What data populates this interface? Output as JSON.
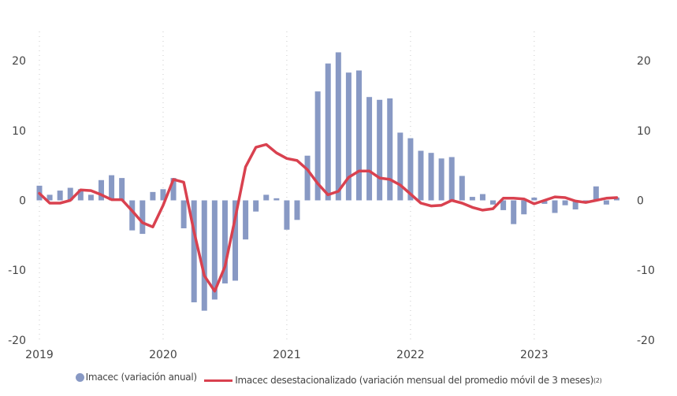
{
  "chart_data": {
    "type": "bar+line",
    "title": "",
    "xlabel": "",
    "ylabel": "",
    "ylim": [
      -20,
      25
    ],
    "yticks": [
      20,
      10,
      0,
      -10,
      -20
    ],
    "y2ticks": [
      20,
      10,
      0,
      -10,
      -20
    ],
    "xticks": [
      "2019",
      "2020",
      "2021",
      "2022",
      "2023"
    ],
    "grid": "vertical dotted at year starts",
    "legend_position": "bottom",
    "x": [
      "2019-01",
      "2019-02",
      "2019-03",
      "2019-04",
      "2019-05",
      "2019-06",
      "2019-07",
      "2019-08",
      "2019-09",
      "2019-10",
      "2019-11",
      "2019-12",
      "2020-01",
      "2020-02",
      "2020-03",
      "2020-04",
      "2020-05",
      "2020-06",
      "2020-07",
      "2020-08",
      "2020-09",
      "2020-10",
      "2020-11",
      "2020-12",
      "2021-01",
      "2021-02",
      "2021-03",
      "2021-04",
      "2021-05",
      "2021-06",
      "2021-07",
      "2021-08",
      "2021-09",
      "2021-10",
      "2021-11",
      "2021-12",
      "2022-01",
      "2022-02",
      "2022-03",
      "2022-04",
      "2022-05",
      "2022-06",
      "2022-07",
      "2022-08",
      "2022-09",
      "2022-10",
      "2022-11",
      "2022-12",
      "2023-01",
      "2023-02",
      "2023-03",
      "2023-04",
      "2023-05",
      "2023-06",
      "2023-07",
      "2023-08",
      "2023-09"
    ],
    "series": [
      {
        "name": "Imacec (variación anual)",
        "type": "bar",
        "color": "#8899c4",
        "values": [
          2.1,
          0.8,
          1.4,
          1.8,
          1.6,
          0.8,
          2.9,
          3.6,
          3.2,
          -4.3,
          -4.8,
          1.2,
          1.6,
          3.2,
          -4.0,
          -14.6,
          -15.8,
          -14.2,
          -11.9,
          -11.5,
          -5.6,
          -1.6,
          0.8,
          0.3,
          -4.2,
          -2.8,
          6.4,
          15.6,
          19.6,
          21.2,
          18.3,
          18.6,
          14.8,
          14.4,
          14.6,
          9.7,
          8.9,
          7.1,
          6.8,
          6.0,
          6.2,
          3.5,
          0.5,
          0.9,
          -0.6,
          -1.4,
          -3.4,
          -2.0,
          0.4,
          -0.5,
          -1.8,
          -0.7,
          -1.3,
          -0.4,
          2.0,
          -0.6,
          0.4
        ]
      },
      {
        "name": "Imacec desestacionalizado (variación mensual del promedio móvil de 3 meses)",
        "footnote": "(2)",
        "type": "line",
        "color": "#d9414f",
        "values": [
          1.0,
          -0.4,
          -0.4,
          0.0,
          1.5,
          1.4,
          0.8,
          0.1,
          0.1,
          -1.5,
          -3.2,
          -3.8,
          -0.7,
          3.0,
          2.6,
          -4.5,
          -10.8,
          -13.0,
          -9.5,
          -2.5,
          4.8,
          7.6,
          8.0,
          6.8,
          6.0,
          5.7,
          4.4,
          2.4,
          0.8,
          1.3,
          3.3,
          4.2,
          4.2,
          3.2,
          3.0,
          2.2,
          0.9,
          -0.4,
          -0.8,
          -0.7,
          0.0,
          -0.4,
          -1.0,
          -1.4,
          -1.2,
          0.3,
          0.3,
          0.2,
          -0.5,
          0.0,
          0.5,
          0.4,
          -0.1,
          -0.3,
          0.0,
          0.3,
          0.4
        ]
      }
    ]
  },
  "legend": {
    "bar_label": "Imacec (variación anual)",
    "line_label": "Imacec desestacionalizado (variación mensual del promedio móvil de 3 meses)",
    "line_footnote": "(2)"
  }
}
